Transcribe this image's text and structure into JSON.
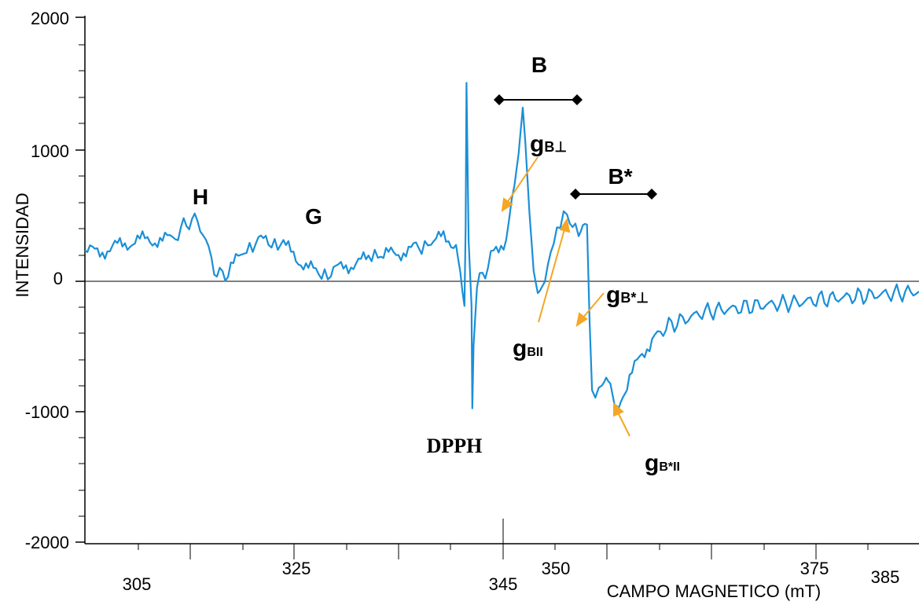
{
  "chart_data": {
    "type": "line",
    "title": "",
    "xlabel": "CAMPO MAGNETICO (mT)",
    "ylabel": "INTENSIDAD",
    "ylim": [
      -2000,
      2000
    ],
    "y_ticks": [
      "2000",
      "1000",
      "0",
      "-1000",
      "-2000"
    ],
    "x_tick_labels": [
      "305",
      "325",
      "345",
      "350",
      "375",
      "385"
    ],
    "color": "#1a8fd6",
    "arrow_color": "#f5a623",
    "series": [
      {
        "x": [
          0,
          0.015,
          0.03,
          0.045,
          0.06,
          0.075,
          0.09,
          0.105,
          0.115,
          0.125,
          0.135,
          0.145,
          0.155,
          0.165,
          0.175,
          0.19,
          0.205,
          0.22,
          0.235,
          0.25,
          0.265,
          0.28,
          0.295,
          0.31,
          0.325,
          0.34,
          0.355,
          0.37,
          0.385,
          0.4,
          0.415,
          0.43,
          0.445,
          0.45,
          0.455,
          0.4565,
          0.4575,
          0.46,
          0.4635,
          0.4645,
          0.466,
          0.47,
          0.49,
          0.505,
          0.515,
          0.52,
          0.525,
          0.528,
          0.533,
          0.538,
          0.543,
          0.548,
          0.555,
          0.562,
          0.57,
          0.578,
          0.588,
          0.592,
          0.597,
          0.602,
          0.605,
          0.608,
          0.612,
          0.62,
          0.625,
          0.63,
          0.635,
          0.64,
          0.645,
          0.65,
          0.665,
          0.68,
          0.7,
          0.72,
          0.74,
          0.76,
          0.78,
          0.8,
          0.82,
          0.84,
          0.86,
          0.88,
          0.9,
          0.92,
          0.94,
          0.96,
          0.98,
          1.0
        ],
        "values": [
          200,
          220,
          230,
          270,
          300,
          300,
          310,
          300,
          380,
          450,
          450,
          300,
          80,
          20,
          90,
          200,
          280,
          300,
          270,
          200,
          100,
          40,
          50,
          100,
          130,
          150,
          170,
          200,
          220,
          240,
          280,
          320,
          280,
          100,
          -200,
          400,
          1500,
          300,
          -200,
          -980,
          -500,
          -50,
          200,
          320,
          700,
          900,
          1250,
          1050,
          500,
          100,
          -50,
          -30,
          100,
          300,
          450,
          500,
          380,
          400,
          450,
          420,
          -300,
          -800,
          -900,
          -800,
          -700,
          -750,
          -950,
          -1000,
          -900,
          -800,
          -600,
          -450,
          -350,
          -300,
          -250,
          -230,
          -220,
          -200,
          -190,
          -180,
          -170,
          -150,
          -140,
          -130,
          -120,
          -110,
          -100,
          -90
        ]
      }
    ],
    "annotations": {
      "H": "H",
      "G": "G",
      "DPPH": "DPPH",
      "B": "B",
      "B_star": "B*",
      "gB_perp_main": "g",
      "gB_perp_sub": "B⊥",
      "gB_par_main": "g",
      "gB_par_sub": "BII",
      "gBs_perp_main": "g",
      "gBs_perp_sub": "B*⊥",
      "gBs_par_main": "g",
      "gBs_par_sub": "B*II"
    }
  }
}
